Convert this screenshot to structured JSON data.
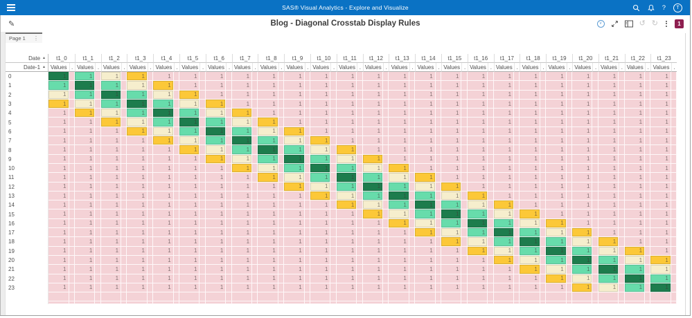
{
  "app_bar": {
    "title": "SAS® Visual Analytics - Explore and Visualize",
    "background_color": "#0a72c4",
    "icons": [
      "menu-icon",
      "search-icon",
      "notifications-icon",
      "help-icon"
    ],
    "help_glyph": "?",
    "avatar_initial": "T"
  },
  "toolbar": {
    "edit_icon": "pencil-icon",
    "report_title": "Blog - Diagonal Crosstab Display Rules",
    "icons": [
      "view-mode-icon",
      "maximize-icon",
      "panel-toggle-icon",
      "undo-icon",
      "redo-icon",
      "more-options-icon"
    ],
    "undo_glyph": "↺",
    "redo_glyph": "↻",
    "badge_count": "1",
    "badge_color": "#8e1f50"
  },
  "tab_bar": {
    "tabs": [
      {
        "label": "Page 1"
      }
    ]
  },
  "crosstab": {
    "corner": {
      "row1_label": "Date",
      "row2_label": "Date-1",
      "sort_indicator": "▲"
    },
    "column_headers": [
      "t1_0",
      "t1_1",
      "t1_2",
      "t1_3",
      "t1_4",
      "t1_5",
      "t1_6",
      "t1_7",
      "t1_8",
      "t1_9",
      "t1_10",
      "t1_11",
      "t1_12",
      "t1_13",
      "t1_14",
      "t1_15",
      "t1_16",
      "t1_17",
      "t1_18",
      "t1_19",
      "t1_20",
      "t1_21",
      "t1_22",
      "t1_23"
    ],
    "measure_label": "Values",
    "filler_header": ".",
    "row_labels": [
      "0",
      "1",
      "2",
      "3",
      "4",
      "5",
      "6",
      "7",
      "8",
      "9",
      "10",
      "11",
      "12",
      "13",
      "14",
      "15",
      "16",
      "17",
      "18",
      "19",
      "20",
      "21",
      "22",
      "23"
    ],
    "cell_value": "1",
    "display_rules": {
      "match_offset_0": "#1d7c4d",
      "match_offset_1": "#67dcab",
      "match_offset_2": "#f6eecd",
      "match_offset_3": "#fcc838",
      "no_match": "#f4d2d6"
    }
  }
}
